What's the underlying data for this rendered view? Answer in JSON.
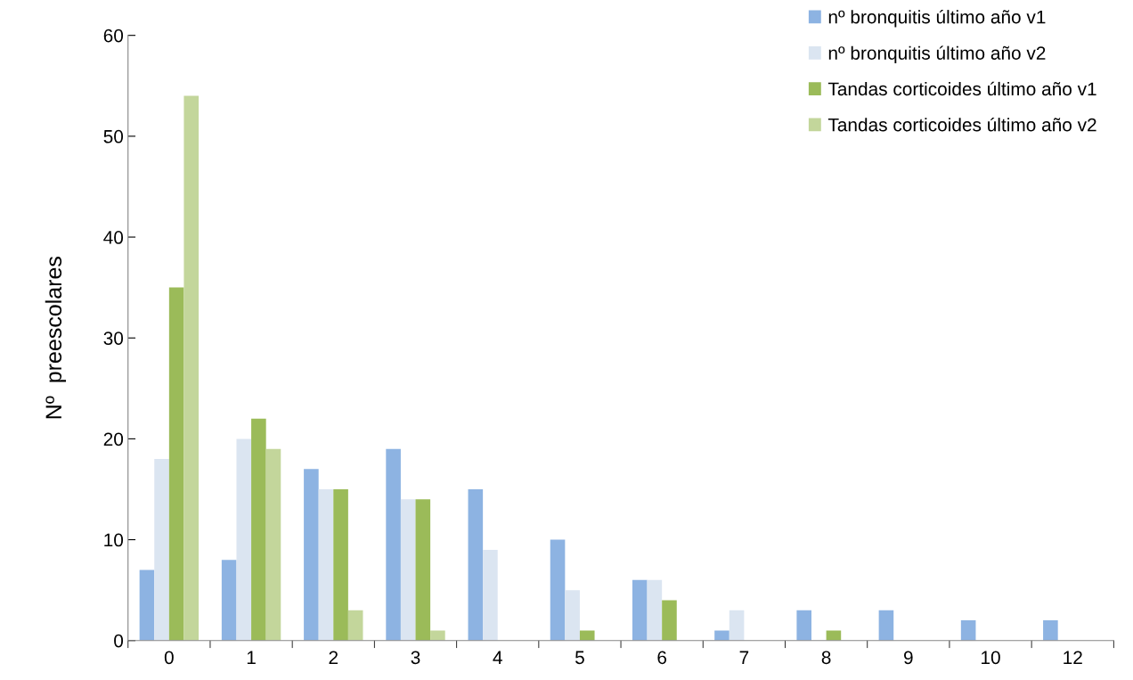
{
  "chart_data": {
    "type": "bar",
    "ylabel": "Nº  preescolares",
    "categories": [
      "0",
      "1",
      "2",
      "3",
      "4",
      "5",
      "6",
      "7",
      "8",
      "9",
      "10",
      "12"
    ],
    "series": [
      {
        "name": "nº bronquitis último año v1",
        "color": "#8db3e2",
        "values": [
          7,
          8,
          17,
          19,
          15,
          10,
          6,
          1,
          3,
          3,
          2,
          2
        ]
      },
      {
        "name": "nº bronquitis último año v2",
        "color": "#dbe5f1",
        "values": [
          18,
          20,
          15,
          14,
          9,
          5,
          6,
          3,
          0,
          0,
          0,
          0
        ]
      },
      {
        "name": "Tandas corticoides último año v1",
        "color": "#9bbb59",
        "values": [
          35,
          22,
          15,
          14,
          0,
          1,
          4,
          0,
          1,
          0,
          0,
          0
        ]
      },
      {
        "name": "Tandas corticoides último año v2",
        "color": "#c3d69b",
        "values": [
          54,
          19,
          3,
          1,
          0,
          0,
          0,
          0,
          0,
          0,
          0,
          0
        ]
      }
    ],
    "ylim": [
      0,
      60
    ],
    "yticks": [
      0,
      10,
      20,
      30,
      40,
      50,
      60
    ],
    "grid": false,
    "legend": "top right"
  }
}
